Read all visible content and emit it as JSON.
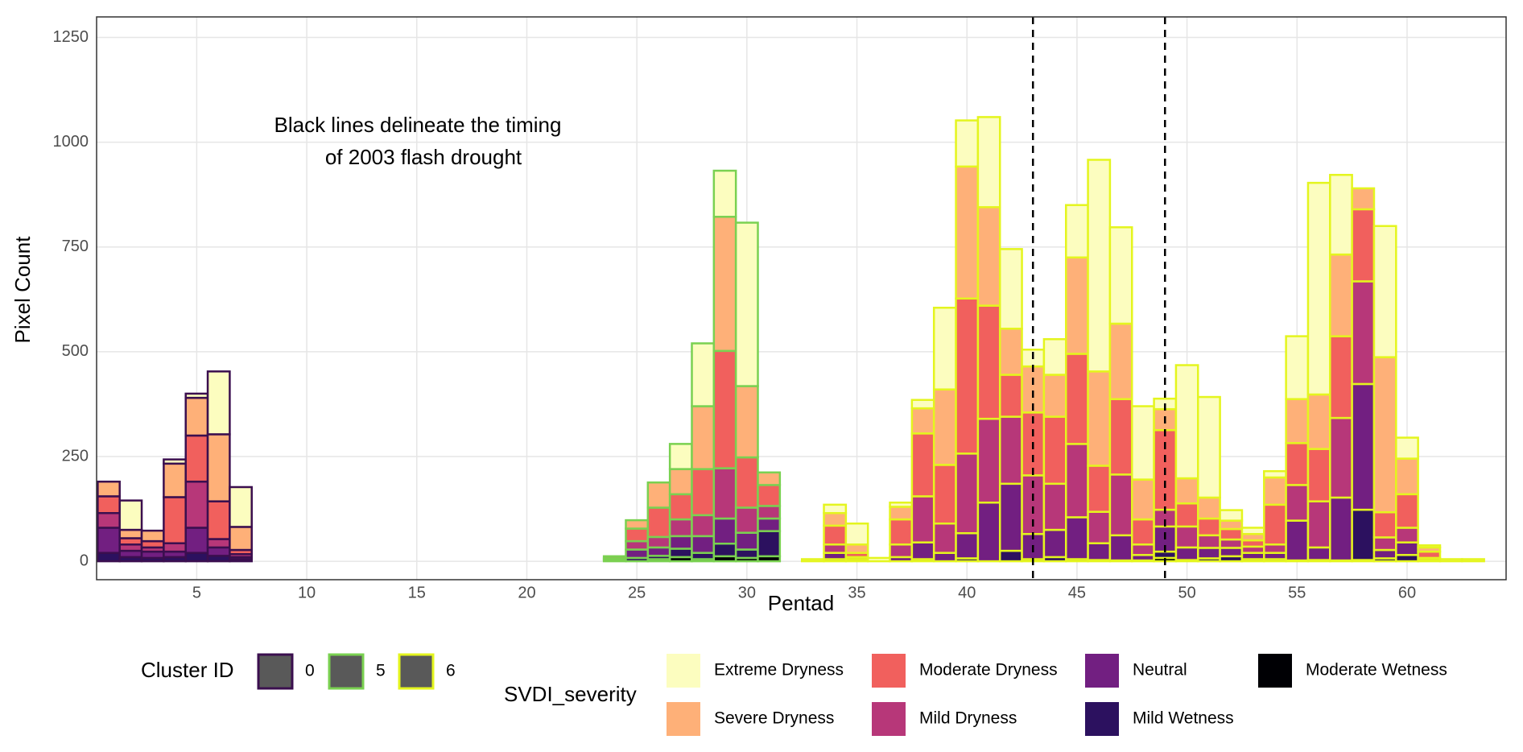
{
  "chart_data": {
    "type": "bar",
    "stacked": true,
    "xlabel": "Pentad",
    "ylabel": "Pixel Count",
    "annotation": [
      "Black lines delineate the timing",
      "of 2003 flash drought"
    ],
    "xlim": [
      0.45,
      64.5
    ],
    "ylim": [
      -44,
      1299
    ],
    "xticks": [
      5,
      10,
      15,
      20,
      25,
      30,
      35,
      40,
      45,
      50,
      55,
      60
    ],
    "yticks": [
      0,
      250,
      500,
      750,
      1000,
      1250
    ],
    "grid": true,
    "vlines": [
      43,
      49
    ],
    "cluster_title": "Cluster ID",
    "severity_title": "SVDI_severity",
    "series": [
      {
        "name": "Extreme Dryness",
        "color": "#fcfdbf"
      },
      {
        "name": "Severe Dryness",
        "color": "#feb078"
      },
      {
        "name": "Moderate Dryness",
        "color": "#f1605d"
      },
      {
        "name": "Mild Dryness",
        "color": "#b73779"
      },
      {
        "name": "Neutral",
        "color": "#721f81"
      },
      {
        "name": "Mild Wetness",
        "color": "#2c115f"
      },
      {
        "name": "Moderate Wetness",
        "color": "#000004"
      }
    ],
    "clusters": [
      {
        "name": "0",
        "color": "#3b0f4f",
        "x": [
          1,
          2,
          3,
          4,
          5,
          6,
          7
        ],
        "values": [
          [
            0,
            35,
            40,
            35,
            60,
            20,
            0
          ],
          [
            70,
            20,
            15,
            15,
            15,
            10,
            0
          ],
          [
            0,
            25,
            15,
            10,
            15,
            8,
            0
          ],
          [
            10,
            80,
            110,
            20,
            13,
            10,
            0
          ],
          [
            10,
            90,
            110,
            110,
            60,
            20,
            0
          ],
          [
            150,
            160,
            90,
            20,
            20,
            13,
            0
          ],
          [
            95,
            55,
            10,
            7,
            5,
            5,
            0
          ]
        ]
      },
      {
        "name": "5",
        "color": "#7ad151",
        "x": [
          24,
          25,
          26,
          27,
          28,
          29,
          30,
          31
        ],
        "values": [
          [
            0,
            0,
            5,
            4,
            3,
            0,
            0
          ],
          [
            0,
            20,
            30,
            20,
            20,
            8,
            0
          ],
          [
            0,
            60,
            70,
            25,
            20,
            8,
            5
          ],
          [
            60,
            60,
            60,
            40,
            30,
            20,
            10
          ],
          [
            150,
            150,
            110,
            50,
            40,
            15,
            5
          ],
          [
            110,
            320,
            280,
            120,
            60,
            30,
            12
          ],
          [
            390,
            170,
            120,
            60,
            40,
            20,
            8
          ],
          [
            0,
            30,
            50,
            30,
            30,
            60,
            12
          ]
        ]
      },
      {
        "name": "6",
        "color": "#e4f51e",
        "x": [
          33,
          34,
          35,
          36,
          37,
          38,
          39,
          40,
          41,
          42,
          43,
          44,
          45,
          46,
          47,
          48,
          49,
          50,
          51,
          52,
          53,
          54,
          55,
          56,
          57,
          58,
          59,
          60,
          61,
          62,
          63
        ],
        "values": [
          [
            5,
            0,
            0,
            0,
            0,
            0,
            0
          ],
          [
            20,
            30,
            45,
            20,
            15,
            5,
            0
          ],
          [
            50,
            20,
            10,
            5,
            5,
            0,
            0
          ],
          [
            8,
            0,
            0,
            0,
            0,
            0,
            0
          ],
          [
            10,
            30,
            60,
            30,
            10,
            0,
            0
          ],
          [
            20,
            60,
            150,
            110,
            40,
            5,
            0
          ],
          [
            195,
            180,
            140,
            70,
            20,
            0,
            0
          ],
          [
            110,
            315,
            370,
            190,
            60,
            7,
            0
          ],
          [
            215,
            235,
            270,
            200,
            140,
            0,
            0
          ],
          [
            190,
            110,
            100,
            160,
            160,
            25,
            0
          ],
          [
            40,
            110,
            150,
            140,
            60,
            5,
            0
          ],
          [
            85,
            100,
            160,
            110,
            65,
            10,
            0
          ],
          [
            125,
            230,
            215,
            175,
            100,
            5,
            0
          ],
          [
            505,
            225,
            110,
            75,
            40,
            3,
            0
          ],
          [
            230,
            180,
            180,
            145,
            60,
            2,
            0
          ],
          [
            175,
            95,
            60,
            25,
            13,
            2,
            0
          ],
          [
            25,
            50,
            190,
            40,
            60,
            15,
            8
          ],
          [
            270,
            60,
            55,
            50,
            30,
            3,
            0
          ],
          [
            240,
            50,
            40,
            30,
            25,
            7,
            0
          ],
          [
            25,
            20,
            25,
            20,
            20,
            12,
            0
          ],
          [
            15,
            15,
            15,
            15,
            15,
            5,
            0
          ],
          [
            15,
            65,
            95,
            20,
            15,
            5,
            0
          ],
          [
            150,
            105,
            100,
            85,
            95,
            2,
            0
          ],
          [
            505,
            130,
            125,
            110,
            30,
            3,
            0
          ],
          [
            190,
            195,
            195,
            190,
            150,
            2,
            0
          ],
          [
            0,
            50,
            172,
            245,
            300,
            120,
            3
          ],
          [
            313,
            370,
            60,
            30,
            20,
            7,
            0
          ],
          [
            50,
            85,
            80,
            35,
            30,
            15,
            0
          ],
          [
            5,
            10,
            15,
            5,
            3,
            0,
            0
          ],
          [
            5,
            0,
            0,
            0,
            0,
            0,
            0
          ],
          [
            5,
            0,
            0,
            0,
            0,
            0,
            0
          ]
        ]
      }
    ]
  }
}
